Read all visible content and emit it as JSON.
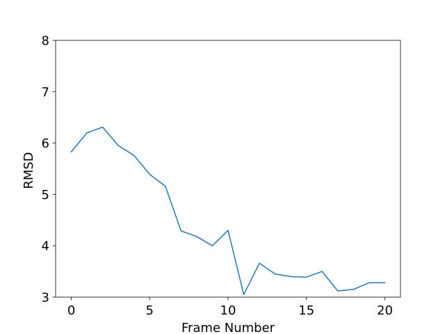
{
  "chart_data": {
    "type": "line",
    "title": "",
    "xlabel": "Frame Number",
    "ylabel": "RMSD",
    "xlim": [
      -1,
      21
    ],
    "ylim": [
      3,
      8
    ],
    "xticks": [
      0,
      5,
      10,
      15,
      20
    ],
    "yticks": [
      3,
      4,
      5,
      6,
      7,
      8
    ],
    "grid": false,
    "series": [
      {
        "color": "#1f77b4",
        "x": [
          0,
          1,
          2,
          3,
          4,
          5,
          6,
          7,
          8,
          9,
          10,
          11,
          12,
          13,
          14,
          15,
          16,
          17,
          18,
          19,
          20
        ],
        "y": [
          5.83,
          6.2,
          6.31,
          5.95,
          5.76,
          5.39,
          5.16,
          4.29,
          4.18,
          4.0,
          4.3,
          3.05,
          3.66,
          3.45,
          3.4,
          3.39,
          3.5,
          3.12,
          3.15,
          3.28,
          3.28
        ]
      }
    ]
  }
}
